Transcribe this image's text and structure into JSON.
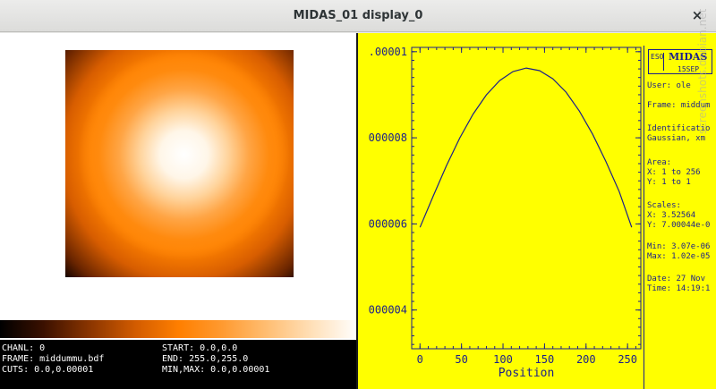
{
  "window": {
    "title": "MIDAS_01 display_0",
    "close_glyph": "×"
  },
  "image_panel": {
    "info": {
      "chanl": "CHANL: 0",
      "frame": "FRAME: middummu.bdf",
      "cuts": "CUTS: 0.0,0.00001",
      "start": "START: 0.0,0.0",
      "end": "END: 255.0,255.0",
      "minmax": "MIN,MAX: 0.0,0.00001"
    },
    "colormap": [
      "#000000",
      "#8a3500",
      "#ff7f00",
      "#ffbf75",
      "#ffffff"
    ]
  },
  "plot_panel": {
    "background": "#ffff00",
    "line_color": "#1b1f8a",
    "chart_data": {
      "type": "line",
      "xlabel": "Position",
      "ylabel": "",
      "xlim": [
        -10,
        266
      ],
      "ylim": [
        3.1e-06,
        1.01e-05
      ],
      "x_ticks": [
        "0",
        "50",
        "100",
        "150",
        "200",
        "250"
      ],
      "x_tick_values": [
        0,
        50,
        100,
        150,
        200,
        250
      ],
      "y_ticks": [
        ".00001",
        "000008",
        "000006",
        "000004"
      ],
      "y_tick_values": [
        1e-05,
        8e-06,
        6e-06,
        4e-06
      ],
      "series": [
        {
          "x": [
            0,
            16,
            32,
            48,
            64,
            80,
            96,
            112,
            128,
            144,
            160,
            176,
            192,
            208,
            224,
            240,
            255
          ],
          "y": [
            5.92e-06,
            6.65e-06,
            7.36e-06,
            8e-06,
            8.55e-06,
            9e-06,
            9.33e-06,
            9.54e-06,
            9.62e-06,
            9.56e-06,
            9.37e-06,
            9.06e-06,
            8.62e-06,
            8.08e-06,
            7.45e-06,
            6.75e-06,
            5.92e-06
          ]
        }
      ]
    },
    "legend": {
      "logo_name": "MIDAS",
      "logo_version": "15SEP",
      "logo_mark": "ESO",
      "user": "User: ole",
      "frame": "Frame: middum",
      "ident_label": "Identificatio",
      "ident_value": "Gaussian, xm",
      "area_label": "Area:",
      "area_x": "X: 1 to 256",
      "area_y": "Y: 1 to 1",
      "scales_label": "Scales:",
      "scales_x": "X: 3.52564",
      "scales_y": "Y: 7.00044e-0",
      "min": "Min: 3.07e-06",
      "max": "Max: 1.02e-05",
      "date": "Date: 27 Nov",
      "time": "Time: 14:19:1"
    }
  },
  "watermark": "screenshots.debian.net"
}
